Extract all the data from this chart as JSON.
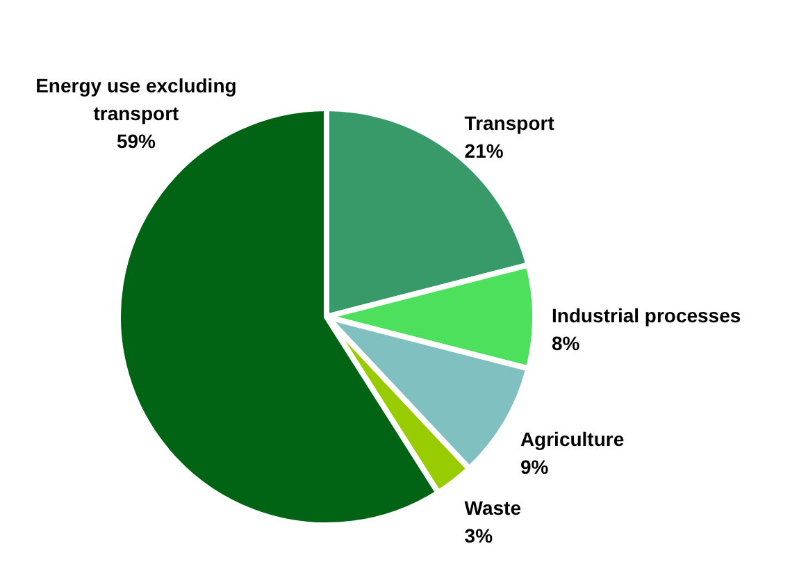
{
  "chart_data": {
    "type": "pie",
    "categories": [
      "Transport",
      "Industrial processes",
      "Agriculture",
      "Waste",
      "Energy use excluding transport"
    ],
    "values": [
      21,
      8,
      9,
      3,
      59
    ],
    "value_labels": [
      "21%",
      "8%",
      "9%",
      "3%",
      "59%"
    ],
    "colors": [
      "#389a68",
      "#4ce05c",
      "#80c0c0",
      "#99cc00",
      "#006414"
    ]
  }
}
